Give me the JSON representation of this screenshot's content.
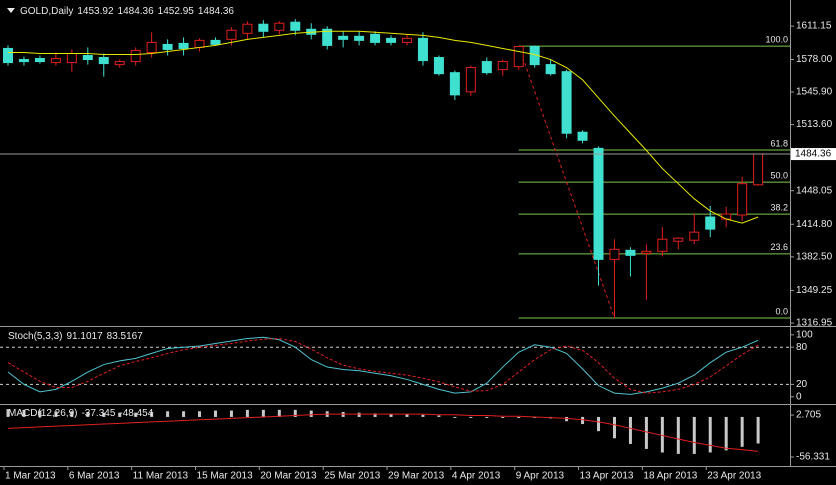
{
  "chart_data": [
    {
      "type": "candlestick",
      "title": "GOLD,Daily",
      "categories": [
        "1 Mar 2013",
        null,
        null,
        null,
        "6 Mar 2013",
        null,
        null,
        null,
        "11 Mar 2013",
        null,
        null,
        null,
        "15 Mar 2013",
        null,
        null,
        null,
        "20 Mar 2013",
        null,
        null,
        null,
        "25 Mar 2013",
        null,
        null,
        null,
        "29 Mar 2013",
        null,
        null,
        null,
        "4 Apr 2013",
        null,
        null,
        null,
        "9 Apr 2013",
        null,
        null,
        null,
        "13 Apr 2013",
        null,
        null,
        null,
        "18 Apr 2013",
        null,
        null,
        null,
        "23 Apr 2013",
        null,
        null,
        null
      ],
      "open": [
        1589,
        1578,
        1579,
        1575,
        1575,
        1582,
        1580,
        1573,
        1576,
        1585,
        1593,
        1594,
        1590,
        1597,
        1598,
        1604,
        1613,
        1607,
        1615,
        1608,
        1608,
        1601,
        1601,
        1603,
        1599,
        1595,
        1599,
        1580,
        1565,
        1546,
        1576,
        1568,
        1571,
        1591,
        1573,
        1566,
        1506,
        1490,
        1380,
        1389,
        1386,
        1388,
        1398,
        1399,
        1422,
        1420,
        1424,
        1453.92
      ],
      "high": [
        1592,
        1581,
        1582,
        1585,
        1588,
        1590,
        1584,
        1578,
        1590,
        1605,
        1598,
        1600,
        1599,
        1600,
        1610,
        1616,
        1617,
        1616,
        1618,
        1614,
        1611,
        1606,
        1606,
        1606,
        1602,
        1603,
        1605,
        1582,
        1567,
        1572,
        1580,
        1578,
        1591.3,
        1592,
        1578,
        1568,
        1508,
        1492,
        1400,
        1392,
        1395,
        1412,
        1402,
        1425,
        1433,
        1432,
        1462,
        1484.36
      ],
      "low": [
        1572,
        1572,
        1574,
        1572,
        1566,
        1573,
        1561,
        1570,
        1572,
        1580,
        1582,
        1582,
        1586,
        1592,
        1592,
        1598,
        1600,
        1603,
        1602,
        1598,
        1588,
        1590,
        1592,
        1592,
        1592,
        1592,
        1572,
        1562,
        1538,
        1542,
        1563,
        1562,
        1568,
        1570,
        1562,
        1500,
        1495,
        1354,
        1321.9,
        1363,
        1340,
        1383,
        1390,
        1395,
        1402,
        1412,
        1418,
        1452.95
      ],
      "close": [
        1575,
        1576,
        1576,
        1579,
        1584,
        1578,
        1574,
        1576,
        1587,
        1595,
        1588,
        1589,
        1597,
        1593,
        1607,
        1613,
        1606,
        1614,
        1607,
        1603,
        1592,
        1598,
        1597,
        1595,
        1595,
        1599,
        1577,
        1564,
        1543,
        1570,
        1565,
        1576,
        1591,
        1573,
        1564,
        1505,
        1498,
        1380,
        1390,
        1384,
        1388,
        1400,
        1401,
        1407,
        1410,
        1425,
        1455,
        1484.36
      ],
      "up_color": "#e0201c",
      "down_color": "#3fe0d0",
      "ma_values": [
        1585,
        1585,
        1584,
        1584,
        1584,
        1584,
        1583,
        1583,
        1583,
        1584,
        1586,
        1588,
        1590,
        1592,
        1595,
        1598,
        1600,
        1602,
        1604,
        1605,
        1606,
        1606,
        1606,
        1605,
        1604,
        1603,
        1602,
        1600,
        1597,
        1595,
        1592,
        1589,
        1586,
        1583,
        1578,
        1570,
        1558,
        1540,
        1522,
        1505,
        1488,
        1470,
        1455,
        1440,
        1428,
        1420,
        1416,
        1422
      ],
      "ma_color": "#e8e800",
      "fib_levels": [
        {
          "value": 1591.3,
          "label": "100.0"
        },
        {
          "value": 1488.4,
          "label": "61.8"
        },
        {
          "value": 1456.6,
          "label": "50.0"
        },
        {
          "value": 1424.8,
          "label": "38.2"
        },
        {
          "value": 1385.5,
          "label": "23.6"
        },
        {
          "value": 1321.9,
          "label": "0.0"
        }
      ],
      "fib_color": "#7ec850",
      "ylim": [
        1315,
        1637
      ],
      "yticks": [
        {
          "value": 1611.15,
          "label": "1611.15"
        },
        {
          "value": 1578,
          "label": "1578.00"
        },
        {
          "value": 1545.9,
          "label": "1545.90"
        },
        {
          "value": 1513.6,
          "label": "1513.60"
        },
        {
          "value": 1448.05,
          "label": "1448.05"
        },
        {
          "value": 1414.8,
          "label": "1414.80"
        },
        {
          "value": 1382.5,
          "label": "1382.50"
        },
        {
          "value": 1349.25,
          "label": "1349.25"
        },
        {
          "value": 1316.95,
          "label": "1316.95"
        }
      ]
    },
    {
      "type": "stochastic",
      "title": "Stoch(5,3,3)",
      "k_values": [
        40,
        20,
        8,
        12,
        25,
        40,
        52,
        58,
        62,
        70,
        78,
        80,
        82,
        86,
        90,
        94,
        96,
        92,
        80,
        60,
        48,
        44,
        42,
        38,
        34,
        28,
        20,
        12,
        6,
        8,
        22,
        48,
        72,
        84,
        80,
        70,
        45,
        18,
        6,
        4,
        8,
        14,
        22,
        35,
        55,
        72,
        80,
        91.1017
      ],
      "d_values": [
        55,
        40,
        25,
        15,
        15,
        25,
        38,
        50,
        57,
        63,
        70,
        76,
        80,
        83,
        86,
        90,
        93,
        94,
        89,
        77,
        63,
        51,
        45,
        41,
        38,
        35,
        30,
        24,
        16,
        9,
        10,
        20,
        40,
        60,
        76,
        82,
        75,
        55,
        30,
        12,
        6,
        8,
        12,
        20,
        32,
        50,
        68,
        83.5167
      ],
      "k_color": "#4fc3d0",
      "d_color": "#e02020",
      "levels": [
        80,
        20
      ],
      "ylim": [
        -10,
        111
      ],
      "yticks": [
        100,
        80,
        20,
        0
      ]
    },
    {
      "type": "macd",
      "title": "MACD(12,26,9)",
      "values": [
        11,
        10,
        9,
        8,
        8,
        7,
        6,
        6,
        6,
        7,
        8,
        8,
        8,
        9,
        9,
        10,
        10,
        10,
        10,
        9,
        8,
        7,
        6,
        5,
        4,
        4,
        3,
        2,
        0,
        -1,
        -1,
        -1,
        0,
        -1,
        -2,
        -6,
        -10,
        -20,
        -30,
        -38,
        -45,
        -50,
        -52,
        -52,
        -50,
        -47,
        -42,
        -37.345
      ],
      "signal": [
        -16,
        -15,
        -14,
        -13,
        -12,
        -11,
        -10,
        -9,
        -8,
        -7,
        -6,
        -5,
        -4,
        -3,
        -2,
        -1,
        0,
        1,
        2,
        3,
        4,
        4,
        4,
        4,
        4,
        4,
        4,
        3,
        3,
        2,
        2,
        1,
        1,
        0,
        -1,
        -2,
        -4,
        -7,
        -11,
        -16,
        -21,
        -26,
        -31,
        -36,
        -40,
        -44,
        -46,
        -48.454
      ],
      "color": "#c8c8c8",
      "signal_color": "#e02020",
      "ylim": [
        -67.6,
        16.8
      ],
      "yticks": [
        2.705,
        -56.331
      ]
    }
  ]
}
